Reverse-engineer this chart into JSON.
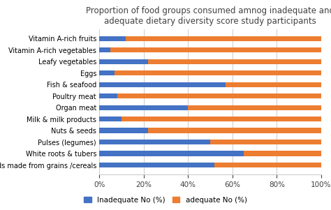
{
  "title": "Proportion of food groups consumed amnog inadequate and\nadequate dietary diversity score study participants",
  "categories": [
    "Foods made from grains /cereals",
    "White roots & tubers",
    "Pulses (legumes)",
    "Nuts & seeds",
    "Milk & milk products",
    "Organ meat",
    "Poultry meat",
    "Fish & seafood",
    "Eggs",
    "Leafy vegetables",
    "Vitamin A-rich vegetables",
    "Vitamin A-rich fruits"
  ],
  "inadequate": [
    52,
    65,
    50,
    22,
    10,
    40,
    8,
    57,
    7,
    22,
    5,
    12
  ],
  "adequate": [
    48,
    35,
    50,
    78,
    90,
    60,
    92,
    43,
    93,
    78,
    95,
    88
  ],
  "color_inadequate": "#4472C4",
  "color_adequate": "#ED7D31",
  "legend_labels": [
    "Inadequate No (%)",
    "adequate No (%)"
  ],
  "xlabel_ticks": [
    "0%",
    "20%",
    "40%",
    "60%",
    "80%",
    "100%"
  ],
  "xtick_vals": [
    0,
    20,
    40,
    60,
    80,
    100
  ],
  "background_color": "#ffffff",
  "title_fontsize": 8.5,
  "label_fontsize": 7,
  "tick_fontsize": 7.5
}
